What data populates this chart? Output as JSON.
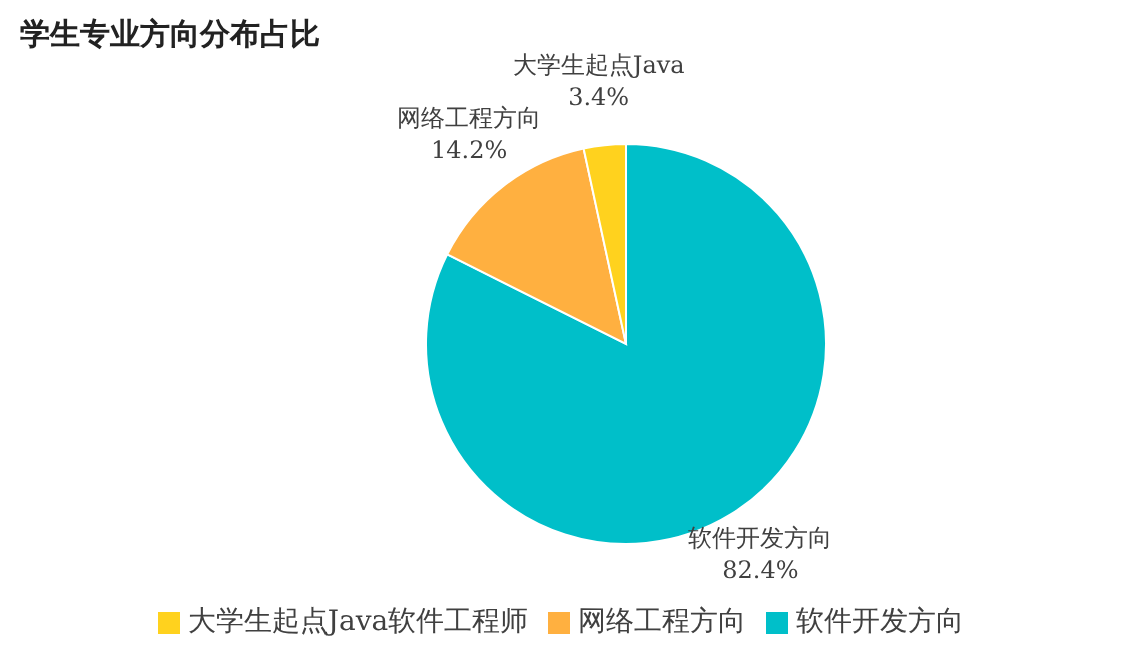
{
  "chart_data": {
    "type": "pie",
    "title": "学生专业方向分布占比",
    "categories": [
      "软件开发方向",
      "网络工程方向",
      "大学生起点Java软件工程师"
    ],
    "values": [
      82.4,
      14.2,
      3.4
    ],
    "colors": [
      "#00bfc9",
      "#ffb040",
      "#ffd21e"
    ],
    "value_labels": [
      "软件开发方向\n82.4%",
      "网络工程方向\n14.2%",
      "大学生起点Java\n3.4%"
    ],
    "legend": "bottom"
  }
}
